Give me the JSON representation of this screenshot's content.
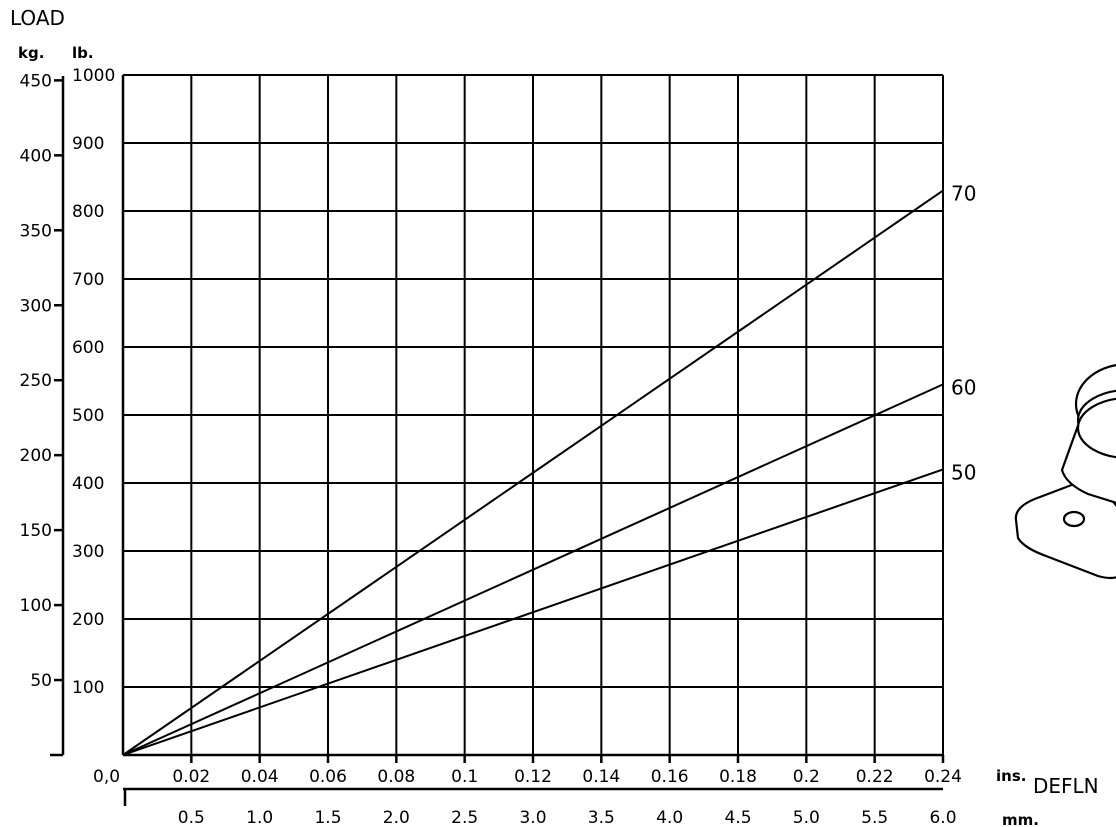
{
  "chart_data": {
    "type": "line",
    "title": "",
    "ylabel": "LOAD",
    "xlabel": "DEFLN",
    "y_units": {
      "primary": "lb.",
      "secondary": "kg."
    },
    "x_units": {
      "primary": "ins.",
      "secondary": "mm."
    },
    "ylim": [
      0,
      1000
    ],
    "xlim": [
      0,
      0.24
    ],
    "grid": true,
    "y_ticks_lb": [
      "100",
      "200",
      "300",
      "400",
      "500",
      "600",
      "700",
      "800",
      "900",
      "1000"
    ],
    "y_ticks_kg": [
      "50",
      "100",
      "150",
      "200",
      "250",
      "300",
      "350",
      "400",
      "450"
    ],
    "x_ticks_in": [
      "0.02",
      "0.04",
      "0.06",
      "0.08",
      "0.1",
      "0.12",
      "0.14",
      "0.16",
      "0.18",
      "0.2",
      "0.22",
      "0.24"
    ],
    "x_ticks_mm": [
      "0.5",
      "1.0",
      "1.5",
      "2.0",
      "2.5",
      "3.0",
      "3.5",
      "4.0",
      "4.5",
      "5.0",
      "5.5",
      "6.0"
    ],
    "origin_label": "0,0",
    "series": [
      {
        "name": "70",
        "x": [
          0,
          0.24
        ],
        "y": [
          0,
          830
        ]
      },
      {
        "name": "60",
        "x": [
          0,
          0.24
        ],
        "y": [
          0,
          545
        ]
      },
      {
        "name": "50",
        "x": [
          0,
          0.24
        ],
        "y": [
          0,
          420
        ]
      }
    ]
  }
}
